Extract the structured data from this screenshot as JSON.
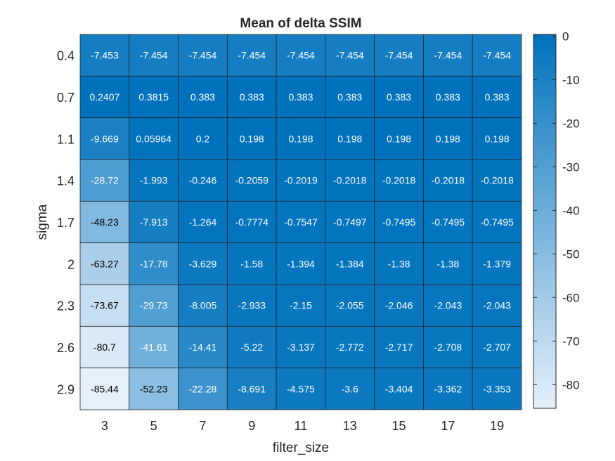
{
  "chart_data": {
    "type": "heatmap",
    "title": "Mean of delta SSIM",
    "xlabel": "filter_size",
    "ylabel": "sigma",
    "x_categories": [
      "3",
      "5",
      "7",
      "9",
      "11",
      "13",
      "15",
      "17",
      "19"
    ],
    "y_categories": [
      "0.4",
      "0.7",
      "1.1",
      "1.4",
      "1.7",
      "2",
      "2.3",
      "2.6",
      "2.9"
    ],
    "values": [
      [
        "-7.453",
        "-7.454",
        "-7.454",
        "-7.454",
        "-7.454",
        "-7.454",
        "-7.454",
        "-7.454",
        "-7.454"
      ],
      [
        "0.2407",
        "0.3815",
        "0.383",
        "0.383",
        "0.383",
        "0.383",
        "0.383",
        "0.383",
        "0.383"
      ],
      [
        "-9.669",
        "0.05964",
        "0.2",
        "0.198",
        "0.198",
        "0.198",
        "0.198",
        "0.198",
        "0.198"
      ],
      [
        "-28.72",
        "-1.993",
        "-0.246",
        "-0.2059",
        "-0.2019",
        "-0.2018",
        "-0.2018",
        "-0.2018",
        "-0.2018"
      ],
      [
        "-48.23",
        "-7.913",
        "-1.264",
        "-0.7774",
        "-0.7547",
        "-0.7497",
        "-0.7495",
        "-0.7495",
        "-0.7495"
      ],
      [
        "-63.27",
        "-17.78",
        "-3.629",
        "-1.58",
        "-1.394",
        "-1.384",
        "-1.38",
        "-1.38",
        "-1.379"
      ],
      [
        "-73.67",
        "-29.73",
        "-8.005",
        "-2.933",
        "-2.15",
        "-2.055",
        "-2.046",
        "-2.043",
        "-2.043"
      ],
      [
        "-80.7",
        "-41.61",
        "-14.41",
        "-5.22",
        "-3.137",
        "-2.772",
        "-2.717",
        "-2.708",
        "-2.707"
      ],
      [
        "-85.44",
        "-52.23",
        "-22.28",
        "-8.691",
        "-4.575",
        "-3.6",
        "-3.404",
        "-3.362",
        "-3.353"
      ]
    ],
    "colorbar": {
      "range": [
        -85.44,
        0.383
      ],
      "ticks": [
        "0",
        "-10",
        "-20",
        "-30",
        "-40",
        "-50",
        "-60",
        "-70",
        "-80"
      ],
      "colors": {
        "low": "#e6f0fa",
        "high": "#0072bd"
      }
    }
  }
}
